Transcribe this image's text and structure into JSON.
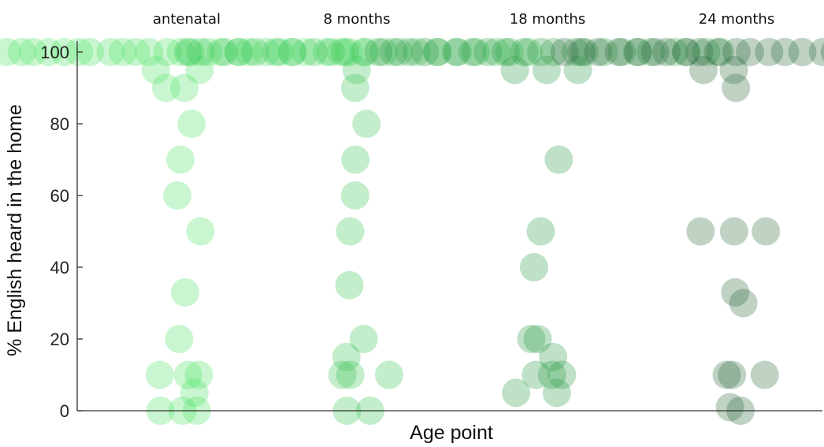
{
  "chart_data": {
    "type": "scatter",
    "xlabel": "Age point",
    "ylabel": "% English heard in the home",
    "ylim": [
      0,
      100
    ],
    "yticks": [
      0,
      20,
      40,
      60,
      80,
      100
    ],
    "grid": false,
    "legend": "none",
    "groups": [
      {
        "label": "antenatal",
        "color": "#4de062",
        "values": [
          100,
          100,
          100,
          100,
          100,
          100,
          100,
          100,
          100,
          100,
          100,
          100,
          100,
          100,
          100,
          100,
          100,
          100,
          100,
          100,
          100,
          100,
          100,
          100,
          100,
          100,
          95,
          95,
          90,
          90,
          80,
          70,
          60,
          50,
          33,
          20,
          10,
          10,
          10,
          5,
          0,
          0,
          0
        ]
      },
      {
        "label": "8 months",
        "color": "#38c452",
        "values": [
          100,
          100,
          100,
          100,
          100,
          100,
          100,
          100,
          100,
          100,
          100,
          100,
          100,
          100,
          100,
          100,
          100,
          100,
          100,
          100,
          95,
          90,
          80,
          70,
          60,
          50,
          35,
          20,
          15,
          10,
          10,
          10,
          0,
          0
        ]
      },
      {
        "label": "18 months",
        "color": "#2a9a44",
        "values": [
          100,
          100,
          100,
          100,
          100,
          100,
          100,
          100,
          100,
          100,
          100,
          100,
          100,
          100,
          100,
          100,
          100,
          100,
          100,
          100,
          100,
          100,
          95,
          95,
          95,
          70,
          50,
          40,
          20,
          20,
          15,
          10,
          10,
          10,
          5,
          5
        ]
      },
      {
        "label": "24 months",
        "color": "#2a6b3c",
        "values": [
          100,
          100,
          100,
          100,
          100,
          100,
          100,
          100,
          100,
          100,
          100,
          100,
          100,
          100,
          100,
          100,
          100,
          100,
          100,
          100,
          100,
          95,
          95,
          90,
          50,
          50,
          50,
          33,
          30,
          10,
          10,
          10,
          0,
          1
        ]
      }
    ]
  }
}
